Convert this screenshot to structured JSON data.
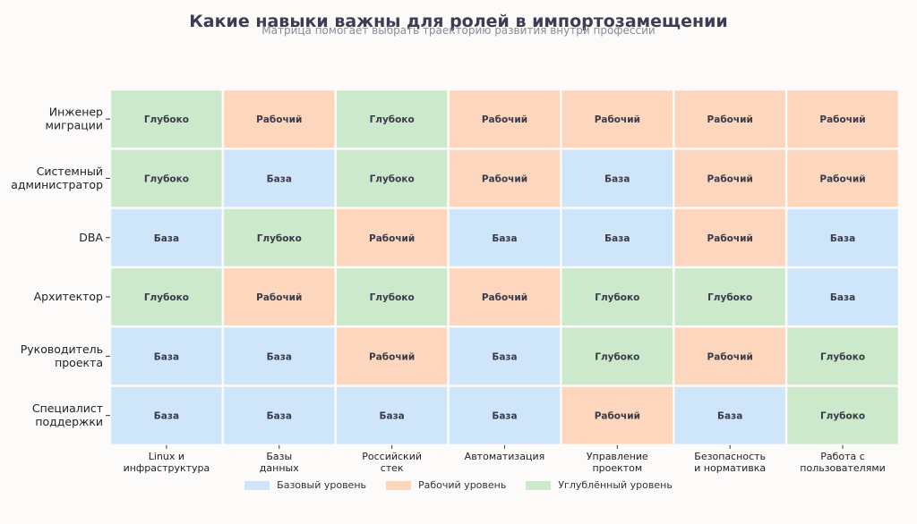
{
  "colors": {
    "Базовый уровень": "#cfe5fa",
    "Рабочий уровень": "#fcd7bd",
    "Углублённый уровень": "#cde9cc",
    "cell_text": "#3a3a4a",
    "label_text": "#222222"
  },
  "chart_data": {
    "type": "heatmap",
    "title": "Какие навыки важны для ролей в импортозамещении",
    "subtitle": "Матрица помогает выбрать траекторию развития внутри профессии",
    "rows": [
      "Инженер\nмиграции",
      "Системный\nадминистратор",
      "DBA",
      "Архитектор",
      "Руководитель\nпроекта",
      "Специалист\nподдержки"
    ],
    "columns": [
      "Linux и\nинфраструктура",
      "Базы\nданных",
      "Российский\nстек",
      "Автоматизация",
      "Управление\nпроектом",
      "Безопасность\nи нормативка",
      "Работа с\nпользователями"
    ],
    "levels": {
      "База": "Базовый уровень",
      "Рабочий": "Рабочий уровень",
      "Глубоко": "Углублённый уровень"
    },
    "values": [
      [
        "Глубоко",
        "Рабочий",
        "Глубоко",
        "Рабочий",
        "Рабочий",
        "Рабочий",
        "Рабочий"
      ],
      [
        "Глубоко",
        "База",
        "Глубоко",
        "Рабочий",
        "База",
        "Рабочий",
        "Рабочий"
      ],
      [
        "База",
        "Глубоко",
        "Рабочий",
        "База",
        "База",
        "Рабочий",
        "База"
      ],
      [
        "Глубоко",
        "Рабочий",
        "Глубоко",
        "Рабочий",
        "Глубоко",
        "Глубоко",
        "База"
      ],
      [
        "База",
        "База",
        "Рабочий",
        "База",
        "Глубоко",
        "Рабочий",
        "Глубоко"
      ],
      [
        "База",
        "База",
        "База",
        "База",
        "Рабочий",
        "База",
        "Глубоко"
      ]
    ],
    "legend": [
      "Базовый уровень",
      "Рабочий уровень",
      "Углублённый уровень"
    ],
    "legend_position": "bottom-center",
    "grid": false
  }
}
